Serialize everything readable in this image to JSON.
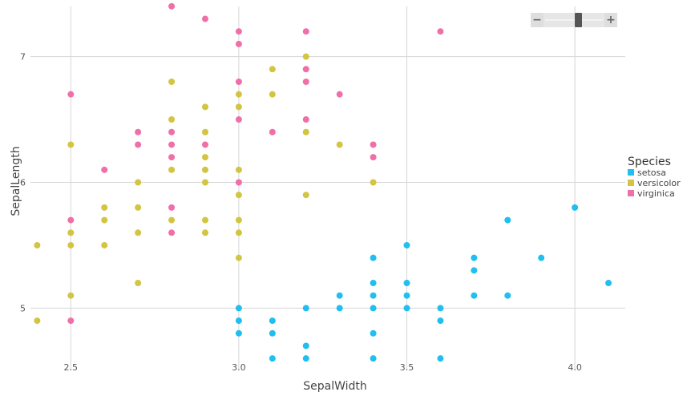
{
  "chart_data": {
    "type": "scatter",
    "xlabel": "SepalWidth",
    "ylabel": "SepalLength",
    "xlim": [
      2.38,
      4.15
    ],
    "ylim": [
      4.48,
      7.45
    ],
    "x_ticks": [
      "2.5",
      "3.0",
      "3.5",
      "4.0"
    ],
    "y_ticks": [
      "5",
      "6",
      "7"
    ],
    "grid": true,
    "legend_title": "Species",
    "legend_position": "right",
    "series": [
      {
        "name": "setosa",
        "color": "#1fbfef",
        "points": [
          [
            3.0,
            5.0
          ],
          [
            3.0,
            4.9
          ],
          [
            3.0,
            4.8
          ],
          [
            3.1,
            4.9
          ],
          [
            3.1,
            4.8
          ],
          [
            3.1,
            4.6
          ],
          [
            3.2,
            5.0
          ],
          [
            3.2,
            4.7
          ],
          [
            3.2,
            4.6
          ],
          [
            3.3,
            5.1
          ],
          [
            3.3,
            5.0
          ],
          [
            3.4,
            5.4
          ],
          [
            3.4,
            5.2
          ],
          [
            3.4,
            5.1
          ],
          [
            3.4,
            5.0
          ],
          [
            3.4,
            4.8
          ],
          [
            3.4,
            4.6
          ],
          [
            3.5,
            5.5
          ],
          [
            3.5,
            5.2
          ],
          [
            3.5,
            5.1
          ],
          [
            3.5,
            5.0
          ],
          [
            3.6,
            5.0
          ],
          [
            3.6,
            4.9
          ],
          [
            3.6,
            4.6
          ],
          [
            3.7,
            5.4
          ],
          [
            3.7,
            5.3
          ],
          [
            3.7,
            5.1
          ],
          [
            3.8,
            5.7
          ],
          [
            3.8,
            5.1
          ],
          [
            3.9,
            5.4
          ],
          [
            4.0,
            5.8
          ],
          [
            4.1,
            5.2
          ]
        ]
      },
      {
        "name": "versicolor",
        "color": "#d3c442",
        "points": [
          [
            2.4,
            5.5
          ],
          [
            2.4,
            4.9
          ],
          [
            2.5,
            6.3
          ],
          [
            2.5,
            5.6
          ],
          [
            2.5,
            5.5
          ],
          [
            2.5,
            5.1
          ],
          [
            2.6,
            5.8
          ],
          [
            2.6,
            5.7
          ],
          [
            2.6,
            5.5
          ],
          [
            2.7,
            6.0
          ],
          [
            2.7,
            5.8
          ],
          [
            2.7,
            5.6
          ],
          [
            2.7,
            5.2
          ],
          [
            2.8,
            6.8
          ],
          [
            2.8,
            6.5
          ],
          [
            2.8,
            6.1
          ],
          [
            2.8,
            5.7
          ],
          [
            2.9,
            6.6
          ],
          [
            2.9,
            6.4
          ],
          [
            2.9,
            6.2
          ],
          [
            2.9,
            6.1
          ],
          [
            2.9,
            6.0
          ],
          [
            2.9,
            5.7
          ],
          [
            2.9,
            5.6
          ],
          [
            3.0,
            6.7
          ],
          [
            3.0,
            6.6
          ],
          [
            3.0,
            6.1
          ],
          [
            3.0,
            5.9
          ],
          [
            3.0,
            5.7
          ],
          [
            3.0,
            5.6
          ],
          [
            3.0,
            5.4
          ],
          [
            3.1,
            6.9
          ],
          [
            3.1,
            6.7
          ],
          [
            3.2,
            7.0
          ],
          [
            3.2,
            6.4
          ],
          [
            3.2,
            5.9
          ],
          [
            3.3,
            6.3
          ],
          [
            3.4,
            6.0
          ]
        ]
      },
      {
        "name": "virginica",
        "color": "#f06fa8",
        "points": [
          [
            2.5,
            6.7
          ],
          [
            2.5,
            5.7
          ],
          [
            2.5,
            4.9
          ],
          [
            2.6,
            6.1
          ],
          [
            2.7,
            6.4
          ],
          [
            2.7,
            6.3
          ],
          [
            2.8,
            7.4
          ],
          [
            2.8,
            6.4
          ],
          [
            2.8,
            6.3
          ],
          [
            2.8,
            6.2
          ],
          [
            2.8,
            5.8
          ],
          [
            2.8,
            5.6
          ],
          [
            2.9,
            7.3
          ],
          [
            2.9,
            6.3
          ],
          [
            3.0,
            7.2
          ],
          [
            3.0,
            7.1
          ],
          [
            3.0,
            6.8
          ],
          [
            3.0,
            6.5
          ],
          [
            3.0,
            6.0
          ],
          [
            3.1,
            6.4
          ],
          [
            3.2,
            7.2
          ],
          [
            3.2,
            6.9
          ],
          [
            3.2,
            6.8
          ],
          [
            3.2,
            6.5
          ],
          [
            3.3,
            6.7
          ],
          [
            3.4,
            6.3
          ],
          [
            3.4,
            6.2
          ],
          [
            3.6,
            7.2
          ]
        ]
      }
    ]
  },
  "zoom": {
    "minus_label": "−",
    "plus_label": "+"
  }
}
